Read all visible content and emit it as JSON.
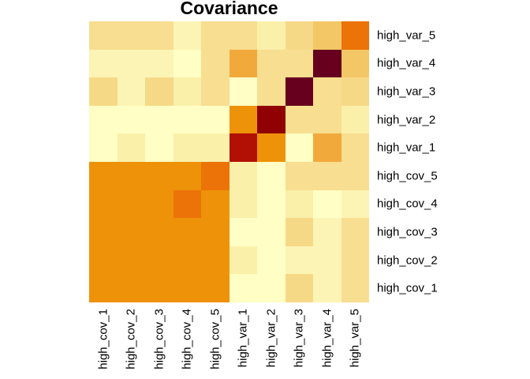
{
  "title": "Covariance",
  "chart_data": {
    "type": "heatmap",
    "title": "Covariance",
    "legend": "none",
    "grid": "off",
    "x_categories": [
      "high_cov_1",
      "high_cov_2",
      "high_cov_3",
      "high_cov_4",
      "high_cov_5",
      "high_var_1",
      "high_var_2",
      "high_var_3",
      "high_var_4",
      "high_var_5"
    ],
    "y_categories_top_to_bottom": [
      "high_var_5",
      "high_var_4",
      "high_var_3",
      "high_var_2",
      "high_var_1",
      "high_cov_5",
      "high_cov_4",
      "high_cov_3",
      "high_cov_2",
      "high_cov_1"
    ],
    "palette_note": "yellow-orange-red ramp; low = pale yellow #FFFEC4, mid = orange #EE9209, high = maroon #67001F",
    "rows": [
      {
        "label": "high_var_5",
        "cells": [
          "#F8DE90",
          "#F8DE90",
          "#F8DE90",
          "#FCF4B5",
          "#F8DE90",
          "#F8DE90",
          "#FBF0AA",
          "#F6D987",
          "#F4C766",
          "#EB7307"
        ]
      },
      {
        "label": "high_var_4",
        "cells": [
          "#FCF4B5",
          "#FCF4B5",
          "#FCF4B5",
          "#FFFEC4",
          "#F8DE90",
          "#F2A93C",
          "#F8DE90",
          "#F8DE90",
          "#67001F",
          "#F4C766"
        ]
      },
      {
        "label": "high_var_3",
        "cells": [
          "#F6D987",
          "#FCF4B5",
          "#F6D987",
          "#FBF0AA",
          "#F8DE90",
          "#FFFEC4",
          "#F8DE90",
          "#67001F",
          "#F8DE90",
          "#F6D987"
        ]
      },
      {
        "label": "high_var_2",
        "cells": [
          "#FFFEC4",
          "#FFFEC4",
          "#FFFEC4",
          "#FFFEC4",
          "#FFFEC4",
          "#EE9209",
          "#900104",
          "#F8DE90",
          "#F8DE90",
          "#FBF0AA"
        ]
      },
      {
        "label": "high_var_1",
        "cells": [
          "#FFFEC4",
          "#FBF0AA",
          "#FFFEC4",
          "#FBF0AA",
          "#FBF0AA",
          "#B31005",
          "#EE9209",
          "#FFFEC4",
          "#F2A93C",
          "#F8DE90"
        ]
      },
      {
        "label": "high_cov_5",
        "cells": [
          "#EE9209",
          "#EE9209",
          "#EE9209",
          "#EE9209",
          "#EB7307",
          "#FBF0AA",
          "#FFFEC4",
          "#F8DE90",
          "#F8DE90",
          "#F8DE90"
        ]
      },
      {
        "label": "high_cov_4",
        "cells": [
          "#EE9209",
          "#EE9209",
          "#EE9209",
          "#EB7307",
          "#EE9209",
          "#FBF0AA",
          "#FFFEC4",
          "#FBF0AA",
          "#FFFEC4",
          "#FCF4B5"
        ]
      },
      {
        "label": "high_cov_3",
        "cells": [
          "#EE9209",
          "#EE9209",
          "#EE9209",
          "#EE9209",
          "#EE9209",
          "#FFFEC4",
          "#FFFEC4",
          "#F6D987",
          "#FCF4B5",
          "#F8DE90"
        ]
      },
      {
        "label": "high_cov_2",
        "cells": [
          "#EE9209",
          "#EE9209",
          "#EE9209",
          "#EE9209",
          "#EE9209",
          "#FBF0AA",
          "#FFFEC4",
          "#FCF4B5",
          "#FCF4B5",
          "#F8DE90"
        ]
      },
      {
        "label": "high_cov_1",
        "cells": [
          "#EE9209",
          "#EE9209",
          "#EE9209",
          "#EE9209",
          "#EE9209",
          "#FFFEC4",
          "#FFFEC4",
          "#F6D987",
          "#FCF4B5",
          "#F8DE90"
        ]
      }
    ]
  }
}
